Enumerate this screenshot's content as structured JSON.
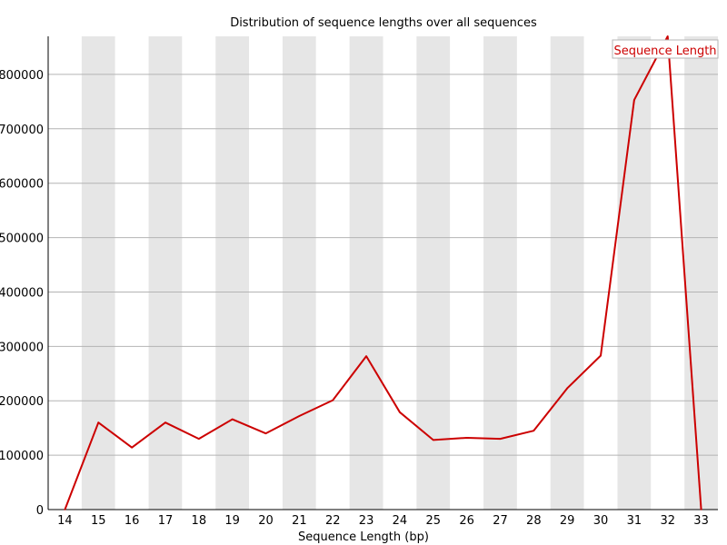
{
  "chart_data": {
    "type": "line",
    "title": "Distribution of sequence lengths over all sequences",
    "xlabel": "Sequence Length (bp)",
    "ylabel": "",
    "categories": [
      "14",
      "15",
      "16",
      "17",
      "18",
      "19",
      "20",
      "21",
      "22",
      "23",
      "24",
      "25",
      "26",
      "27",
      "28",
      "29",
      "30",
      "31",
      "32",
      "33"
    ],
    "series": [
      {
        "name": "Sequence Length",
        "color": "#cc0000",
        "values": [
          0,
          160000,
          114000,
          160000,
          130000,
          166000,
          140000,
          172000,
          201000,
          282000,
          179000,
          128000,
          132000,
          130000,
          145000,
          223000,
          283000,
          753000,
          870000,
          0
        ]
      }
    ],
    "ylim": [
      0,
      870000
    ],
    "yticks": [
      0,
      100000,
      200000,
      300000,
      400000,
      500000,
      600000,
      700000,
      800000
    ],
    "ytick_labels": [
      "0",
      "100000",
      "200000",
      "300000",
      "400000",
      "500000",
      "600000",
      "700000",
      "800000"
    ],
    "grid": true,
    "legend_position": "top-right",
    "band_colors": {
      "light": "#ffffff",
      "dark": "#e6e6e6"
    },
    "grid_color": "#b4b4b4",
    "axis_color": "#000000"
  }
}
